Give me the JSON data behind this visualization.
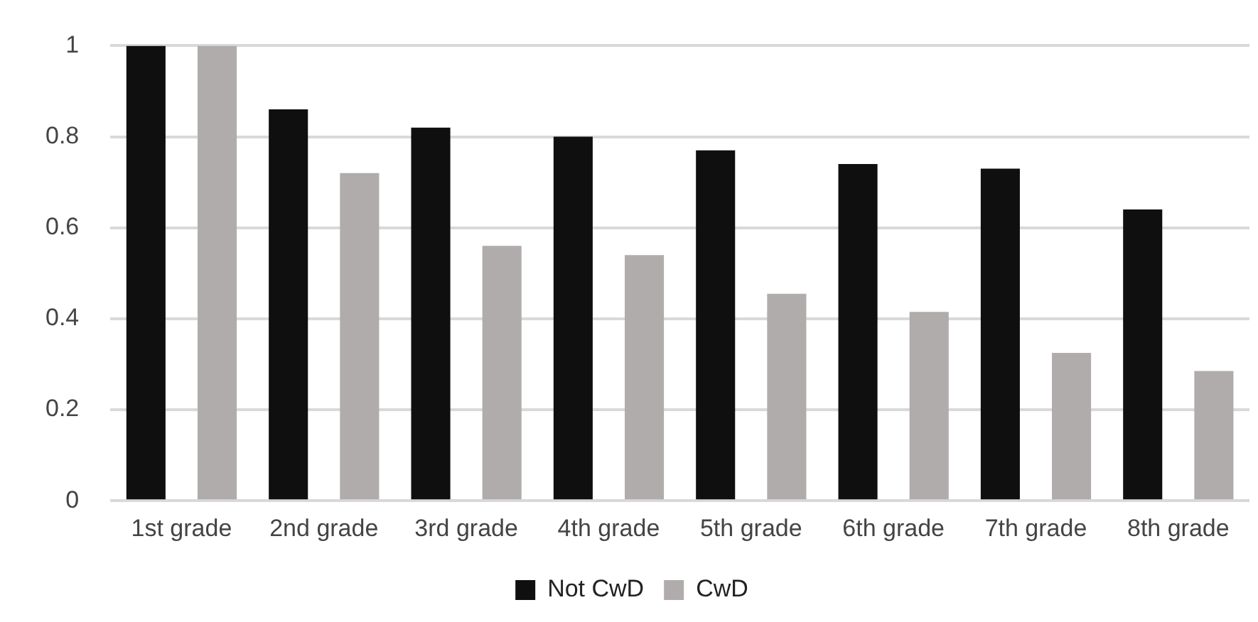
{
  "chart_data": {
    "type": "bar",
    "categories": [
      "1st grade",
      "2nd grade",
      "3rd grade",
      "4th grade",
      "5th grade",
      "6th grade",
      "7th grade",
      "8th grade"
    ],
    "series": [
      {
        "name": "Not CwD",
        "color": "#0f0f0f",
        "values": [
          1,
          0.86,
          0.82,
          0.8,
          0.77,
          0.74,
          0.73,
          0.64
        ]
      },
      {
        "name": "CwD",
        "color": "#b0acab",
        "values": [
          1,
          0.72,
          0.56,
          0.54,
          0.455,
          0.415,
          0.325,
          0.285
        ]
      }
    ],
    "ylim": [
      0,
      1
    ],
    "yticks": [
      0,
      0.2,
      0.4,
      0.6,
      0.8,
      1
    ],
    "grid": "y",
    "legend": "bottom"
  }
}
